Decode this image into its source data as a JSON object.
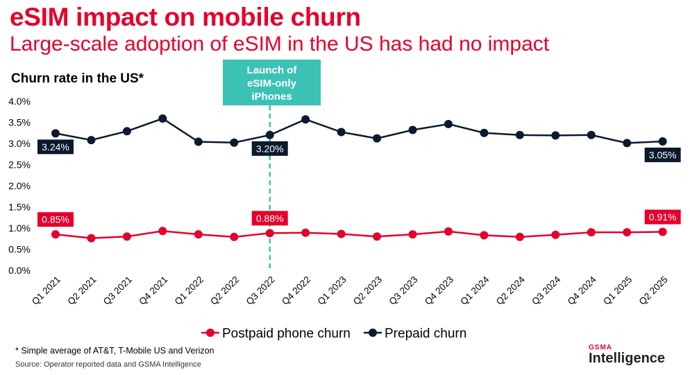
{
  "title": "eSIM impact on mobile churn",
  "subtitle": "Large-scale adoption of eSIM in the US has had no impact",
  "footnote": "* Simple average of AT&T, T-Mobile US and Verizon",
  "source": "Source: Operator reported data and GSMA Intelligence",
  "logo": {
    "top": "GSMA",
    "bottom": "Intelligence"
  },
  "chart_data": {
    "type": "line",
    "title": "Churn rate in the US*",
    "xlabel": "",
    "ylabel": "",
    "categories": [
      "Q1 2021",
      "Q2 2021",
      "Q3 2021",
      "Q4 2021",
      "Q1 2022",
      "Q2 2022",
      "Q3 2022",
      "Q4 2022",
      "Q1 2023",
      "Q2 2023",
      "Q3 2023",
      "Q4 2023",
      "Q1 2024",
      "Q2 2024",
      "Q3 2024",
      "Q4 2024",
      "Q1 2025",
      "Q2 2025"
    ],
    "yticks": [
      "0.0%",
      "0.5%",
      "1.0%",
      "1.5%",
      "2.0%",
      "2.5%",
      "3.0%",
      "3.5%",
      "4.0%"
    ],
    "ylim": [
      0,
      4.0
    ],
    "grid": false,
    "legend_position": "bottom",
    "series": [
      {
        "name": "Postpaid phone churn",
        "color": "#e4002b",
        "values": [
          0.85,
          0.76,
          0.8,
          0.93,
          0.85,
          0.79,
          0.88,
          0.89,
          0.86,
          0.8,
          0.85,
          0.92,
          0.83,
          0.79,
          0.84,
          0.9,
          0.9,
          0.91
        ],
        "data_labels": [
          {
            "index": 0,
            "text": "0.85%"
          },
          {
            "index": 6,
            "text": "0.88%"
          },
          {
            "index": 17,
            "text": "0.91%"
          }
        ]
      },
      {
        "name": "Prepaid churn",
        "color": "#0b1a2e",
        "values": [
          3.24,
          3.08,
          3.29,
          3.59,
          3.04,
          3.02,
          3.2,
          3.57,
          3.27,
          3.12,
          3.32,
          3.46,
          3.25,
          3.2,
          3.19,
          3.2,
          3.01,
          3.05
        ],
        "data_labels": [
          {
            "index": 0,
            "text": "3.24%"
          },
          {
            "index": 6,
            "text": "3.20%"
          },
          {
            "index": 17,
            "text": "3.05%"
          }
        ]
      }
    ],
    "annotation": {
      "text_lines": [
        "Launch of",
        "eSIM-only",
        "iPhones"
      ],
      "category": "Q3 2022",
      "color": "#3cc2b4"
    }
  }
}
